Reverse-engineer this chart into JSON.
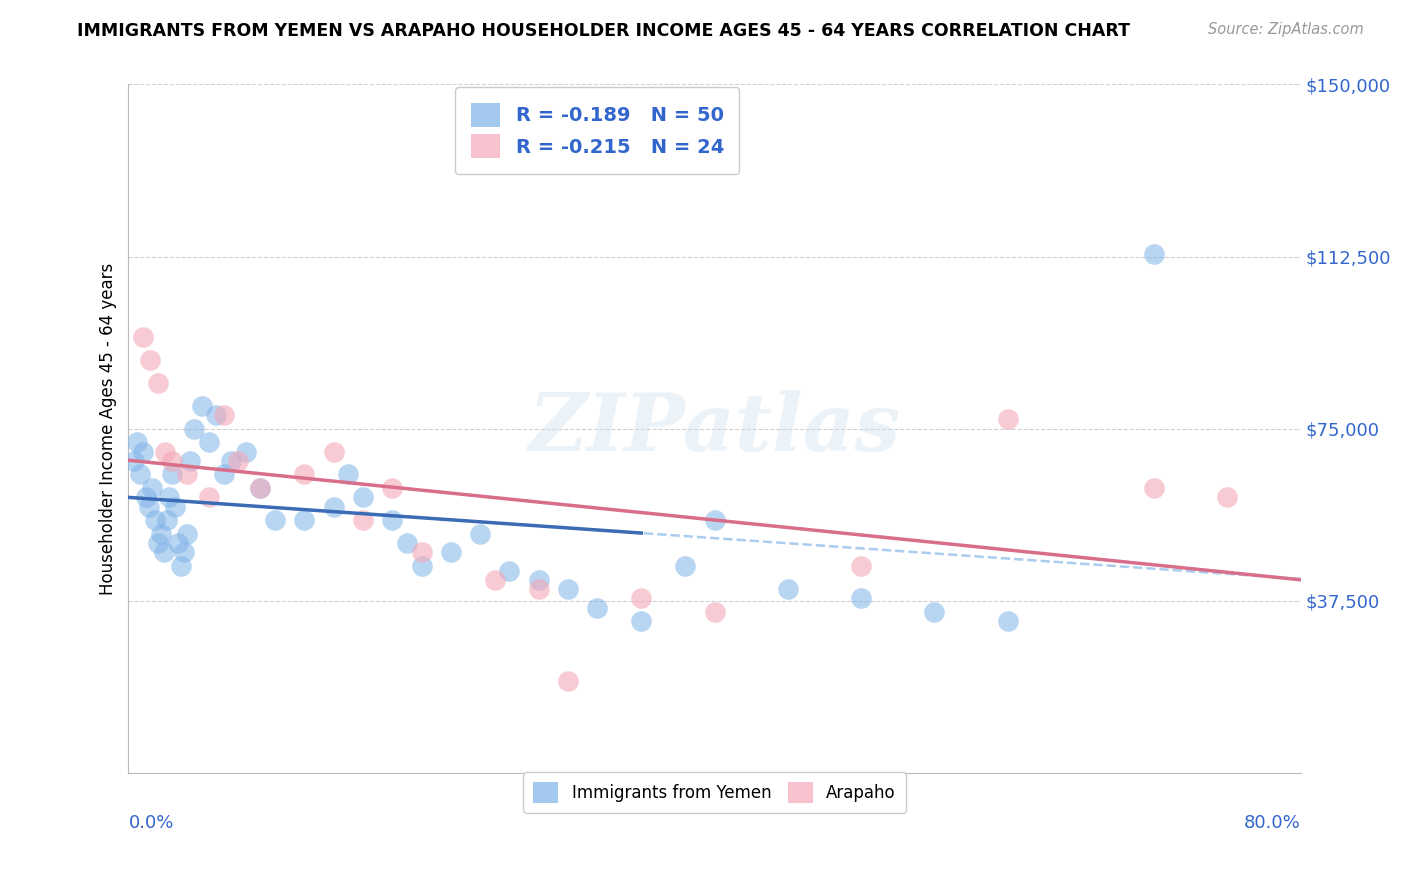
{
  "title": "IMMIGRANTS FROM YEMEN VS ARAPAHO HOUSEHOLDER INCOME AGES 45 - 64 YEARS CORRELATION CHART",
  "source": "Source: ZipAtlas.com",
  "ylabel": "Householder Income Ages 45 - 64 years",
  "yticks": [
    0,
    37500,
    75000,
    112500,
    150000
  ],
  "ytick_labels": [
    "",
    "$37,500",
    "$75,000",
    "$112,500",
    "$150,000"
  ],
  "legend_blue": "R = -0.189   N = 50",
  "legend_pink": "R = -0.215   N = 24",
  "legend_label_blue": "Immigrants from Yemen",
  "legend_label_pink": "Arapaho",
  "blue_color": "#7EB3E8",
  "pink_color": "#F4A8B8",
  "blue_line_color": "#3B6BB5",
  "pink_line_color": "#D96E8A",
  "dashed_line_color": "#AACCEE",
  "tick_color": "#3366CC",
  "watermark_text": "ZIPatlas",
  "xlim": [
    0,
    80
  ],
  "ylim": [
    0,
    150000
  ],
  "blue_x": [
    0.4,
    0.6,
    0.8,
    1.0,
    1.2,
    1.4,
    1.6,
    1.8,
    2.0,
    2.2,
    2.4,
    2.6,
    2.8,
    3.0,
    3.2,
    3.4,
    3.6,
    3.8,
    4.0,
    4.2,
    4.5,
    5.0,
    5.5,
    6.0,
    6.5,
    7.0,
    8.0,
    9.0,
    10.0,
    12.0,
    14.0,
    15.0,
    16.0,
    18.0,
    19.0,
    20.0,
    22.0,
    24.0,
    26.0,
    28.0,
    30.0,
    32.0,
    35.0,
    38.0,
    40.0,
    45.0,
    50.0,
    55.0,
    60.0,
    70.0
  ],
  "blue_y": [
    68000,
    72000,
    65000,
    70000,
    60000,
    58000,
    62000,
    55000,
    50000,
    52000,
    48000,
    55000,
    60000,
    65000,
    58000,
    50000,
    45000,
    48000,
    52000,
    68000,
    75000,
    80000,
    72000,
    78000,
    65000,
    68000,
    70000,
    62000,
    55000,
    55000,
    58000,
    65000,
    60000,
    55000,
    50000,
    45000,
    48000,
    52000,
    44000,
    42000,
    40000,
    36000,
    33000,
    45000,
    55000,
    40000,
    38000,
    35000,
    33000,
    113000
  ],
  "pink_x": [
    1.0,
    1.5,
    2.0,
    2.5,
    3.0,
    4.0,
    5.5,
    6.5,
    7.5,
    9.0,
    12.0,
    14.0,
    16.0,
    18.0,
    20.0,
    25.0,
    28.0,
    30.0,
    35.0,
    40.0,
    50.0,
    60.0,
    70.0,
    75.0
  ],
  "pink_y": [
    95000,
    90000,
    85000,
    70000,
    68000,
    65000,
    60000,
    78000,
    68000,
    62000,
    65000,
    70000,
    55000,
    62000,
    48000,
    42000,
    40000,
    20000,
    38000,
    35000,
    45000,
    77000,
    62000,
    60000
  ]
}
